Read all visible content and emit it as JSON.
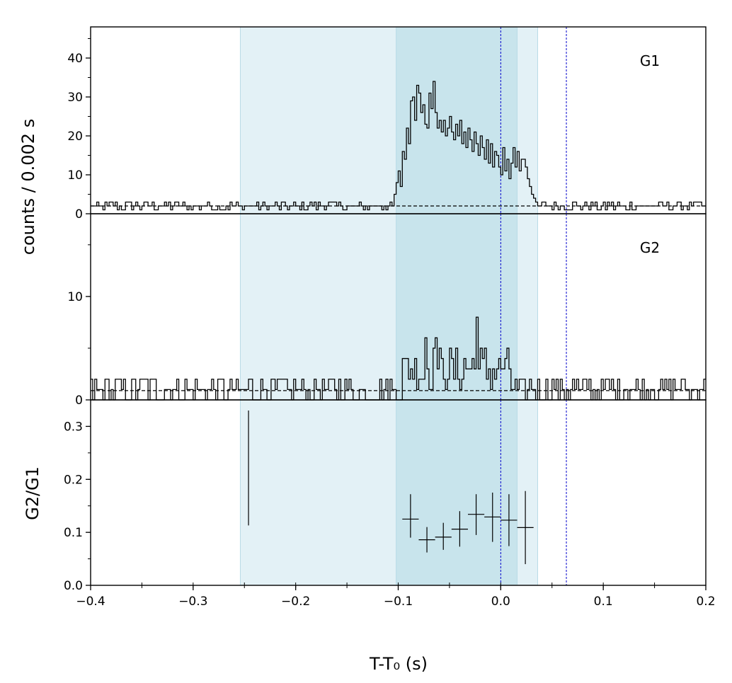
{
  "figure": {
    "ylabel_top": "counts /  0.002 s",
    "xlabel": "T-T₀ (s)"
  },
  "colors": {
    "shade_outer": "#e3f1f6",
    "shade_inner": "#c8e4ec",
    "marker_line": "#0000cc",
    "data_line": "#000000",
    "background_line": "#000000"
  },
  "chart_data": [
    {
      "type": "line",
      "panel": "G1",
      "label": "G1",
      "xlim": [
        -0.4,
        0.2
      ],
      "ylim": [
        0,
        48
      ],
      "yticks": [
        0,
        10,
        20,
        30,
        40
      ],
      "ytick_labels": [
        "0",
        "10",
        "20",
        "30",
        "40"
      ],
      "bin_width": 0.002,
      "background_level": 2,
      "shaded_intervals": [
        [
          -0.254,
          0.036
        ],
        [
          -0.102,
          0.016
        ]
      ],
      "vertical_markers": [
        0.0,
        0.064
      ],
      "segments": [
        {
          "x0": -0.4,
          "x1": -0.104,
          "mean": 2,
          "noise": 1.2,
          "max": 6
        },
        {
          "x0": -0.104,
          "x1": -0.096,
          "values": [
            5,
            8,
            11,
            7
          ]
        },
        {
          "x0": -0.096,
          "x1": -0.088,
          "values": [
            16,
            14,
            22,
            18
          ]
        },
        {
          "x0": -0.088,
          "x1": -0.064,
          "values": [
            29,
            30,
            24,
            33,
            31,
            26,
            28,
            23,
            22,
            31,
            27,
            34
          ]
        },
        {
          "x0": -0.064,
          "x1": -0.036,
          "values": [
            26,
            22,
            24,
            21,
            24,
            20,
            22,
            25,
            21,
            19,
            23,
            20,
            24,
            18
          ]
        },
        {
          "x0": -0.036,
          "x1": -0.004,
          "values": [
            21,
            17,
            22,
            19,
            16,
            21,
            18,
            15,
            20,
            17,
            14,
            19,
            13,
            18,
            12,
            16
          ]
        },
        {
          "x0": -0.004,
          "x1": 0.022,
          "values": [
            15,
            12,
            10,
            17,
            11,
            14,
            9,
            13,
            17,
            12,
            16,
            11,
            14
          ]
        },
        {
          "x0": 0.022,
          "x1": 0.038,
          "values": [
            14,
            12,
            9,
            7,
            5,
            4,
            3,
            2
          ]
        },
        {
          "x0": 0.038,
          "x1": 0.2,
          "mean": 2,
          "noise": 1.2,
          "max": 5
        }
      ]
    },
    {
      "type": "line",
      "panel": "G2",
      "label": "G2",
      "xlim": [
        -0.4,
        0.2
      ],
      "ylim": [
        0,
        18
      ],
      "yticks": [
        0,
        10
      ],
      "ytick_labels": [
        "0",
        "10"
      ],
      "bin_width": 0.002,
      "background_level": 0.9,
      "shaded_intervals": [
        [
          -0.254,
          0.036
        ],
        [
          -0.102,
          0.016
        ]
      ],
      "vertical_markers": [
        0.0,
        0.064
      ],
      "segments": [
        {
          "x0": -0.4,
          "x1": -0.096,
          "mean": 1,
          "noise": 1.3,
          "max": 4
        },
        {
          "x0": -0.096,
          "x1": 0.01,
          "mean": 3,
          "noise": 2.2,
          "max": 6,
          "peaks": [
            [
              -0.024,
              8
            ],
            [
              -0.064,
              6
            ],
            [
              -0.074,
              6
            ]
          ]
        },
        {
          "x0": 0.01,
          "x1": 0.2,
          "mean": 1,
          "noise": 1.2,
          "max": 3
        }
      ]
    },
    {
      "type": "scatter",
      "panel": "ratio",
      "ylabel": "G2/G1",
      "xlim": [
        -0.4,
        0.2
      ],
      "ylim": [
        0.0,
        0.35
      ],
      "yticks": [
        0.0,
        0.1,
        0.2,
        0.3
      ],
      "ytick_labels": [
        "0.0",
        "0.1",
        "0.2",
        "0.3"
      ],
      "xticks": [
        -0.4,
        -0.3,
        -0.2,
        -0.1,
        0.0,
        0.1,
        0.2
      ],
      "xtick_labels": [
        "−0.4",
        "−0.3",
        "−0.2",
        "−0.1",
        "0.0",
        "0.1",
        "0.2"
      ],
      "shaded_intervals": [
        [
          -0.254,
          0.036
        ],
        [
          -0.102,
          0.016
        ]
      ],
      "vertical_markers": [
        0.0,
        0.064
      ],
      "points": [
        {
          "x": -0.088,
          "y": 0.125,
          "xerr": 0.008,
          "ylo": 0.09,
          "yhi": 0.172
        },
        {
          "x": -0.072,
          "y": 0.086,
          "xerr": 0.008,
          "ylo": 0.062,
          "yhi": 0.11
        },
        {
          "x": -0.056,
          "y": 0.091,
          "xerr": 0.008,
          "ylo": 0.067,
          "yhi": 0.118
        },
        {
          "x": -0.04,
          "y": 0.106,
          "xerr": 0.008,
          "ylo": 0.073,
          "yhi": 0.14
        },
        {
          "x": -0.024,
          "y": 0.134,
          "xerr": 0.008,
          "ylo": 0.095,
          "yhi": 0.172
        },
        {
          "x": -0.008,
          "y": 0.129,
          "xerr": 0.008,
          "ylo": 0.082,
          "yhi": 0.175
        },
        {
          "x": 0.008,
          "y": 0.123,
          "xerr": 0.008,
          "ylo": 0.074,
          "yhi": 0.172
        },
        {
          "x": 0.024,
          "y": 0.109,
          "xerr": 0.008,
          "ylo": 0.04,
          "yhi": 0.178
        }
      ],
      "extra_lines": [
        {
          "x": -0.246,
          "ylo": 0.113,
          "yhi": 0.33
        }
      ]
    }
  ]
}
